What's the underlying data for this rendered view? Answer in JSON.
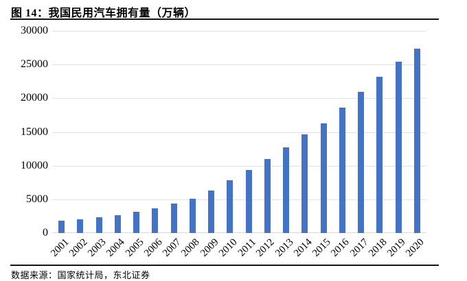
{
  "header": {
    "title": "图 14：我国民用汽车拥有量（万辆）"
  },
  "footer": {
    "source_text": "数据来源：国家统计局，东北证券"
  },
  "chart_data": {
    "type": "bar",
    "title": "我国民用汽车拥有量（万辆）",
    "categories": [
      "2001",
      "2002",
      "2003",
      "2004",
      "2005",
      "2006",
      "2007",
      "2008",
      "2009",
      "2010",
      "2011",
      "2012",
      "2013",
      "2014",
      "2015",
      "2016",
      "2017",
      "2018",
      "2019",
      "2020"
    ],
    "values": [
      1802,
      2053,
      2383,
      2694,
      3160,
      3697,
      4358,
      5100,
      6281,
      7802,
      9356,
      10933,
      12670,
      14598,
      16284,
      18574,
      20907,
      23231,
      25376,
      27341
    ],
    "xlabel": "",
    "ylabel": "",
    "ylim": [
      0,
      30000
    ],
    "yticks": [
      0,
      5000,
      10000,
      15000,
      20000,
      25000,
      30000
    ],
    "grid": true,
    "legend": false,
    "bar_color": "#4472C4",
    "gridline_color": "#E2E2E2",
    "axis_line_color": "#DCDCDC",
    "rule_color": "#151515"
  }
}
